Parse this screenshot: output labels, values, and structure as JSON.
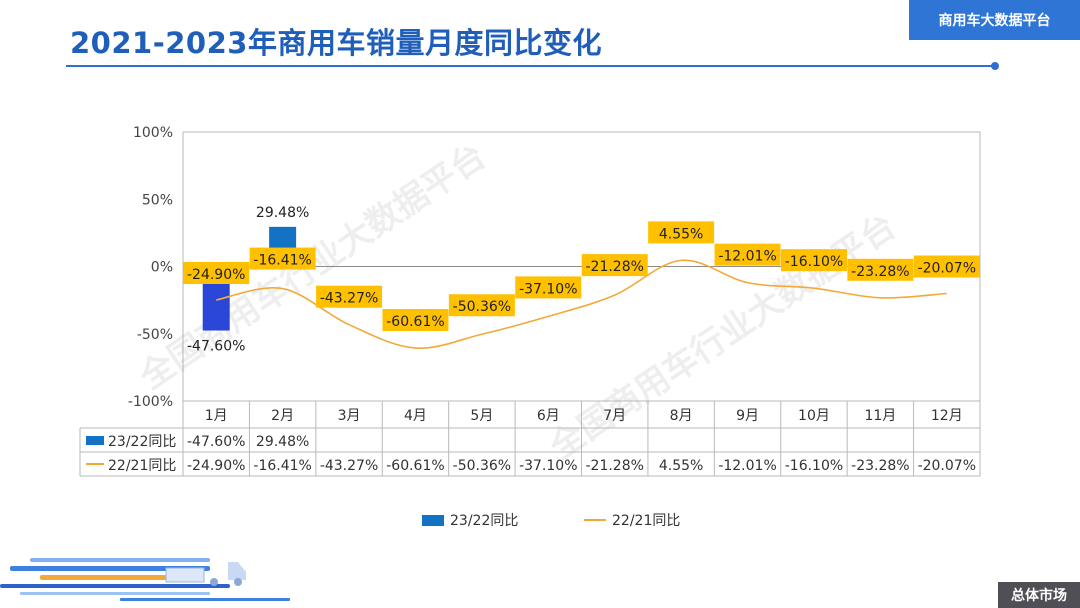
{
  "header": {
    "title": "2021-2023年商用车销量月度同比变化",
    "brand": "商用车大数据平台"
  },
  "footer": {
    "section": "总体市场"
  },
  "watermark": "全国商用车行业大数据平台",
  "colors": {
    "accent": "#1f5fb9",
    "bar_dark": "#2a46d6",
    "bar_light": "#1472c4",
    "line": "#f3a93a",
    "label_bg": "#ffc000",
    "brand_bg": "#2e75d6",
    "footer_bg": "#4f4f55"
  },
  "chart_data": {
    "type": "bar+line",
    "categories": [
      "1月",
      "2月",
      "3月",
      "4月",
      "5月",
      "6月",
      "7月",
      "8月",
      "9月",
      "10月",
      "11月",
      "12月"
    ],
    "y_ticks": [
      "100%",
      "50%",
      "0%",
      "-50%",
      "-100%"
    ],
    "ylim": [
      -100,
      100
    ],
    "series": [
      {
        "name": "23/22同比",
        "kind": "bar",
        "values": [
          -47.6,
          29.48,
          null,
          null,
          null,
          null,
          null,
          null,
          null,
          null,
          null,
          null
        ],
        "labels": [
          "-47.60%",
          "29.48%",
          "",
          "",
          "",
          "",
          "",
          "",
          "",
          "",
          "",
          ""
        ]
      },
      {
        "name": "22/21同比",
        "kind": "line",
        "values": [
          -24.9,
          -16.41,
          -43.27,
          -60.61,
          -50.36,
          -37.1,
          -21.28,
          4.55,
          -12.01,
          -16.1,
          -23.28,
          -20.07
        ],
        "labels": [
          "-24.90%",
          "-16.41%",
          "-43.27%",
          "-60.61%",
          "-50.36%",
          "-37.10%",
          "-21.28%",
          "4.55%",
          "-12.01%",
          "-16.10%",
          "-23.28%",
          "-20.07%"
        ]
      }
    ],
    "legend": [
      "23/22同比",
      "22/21同比"
    ]
  }
}
